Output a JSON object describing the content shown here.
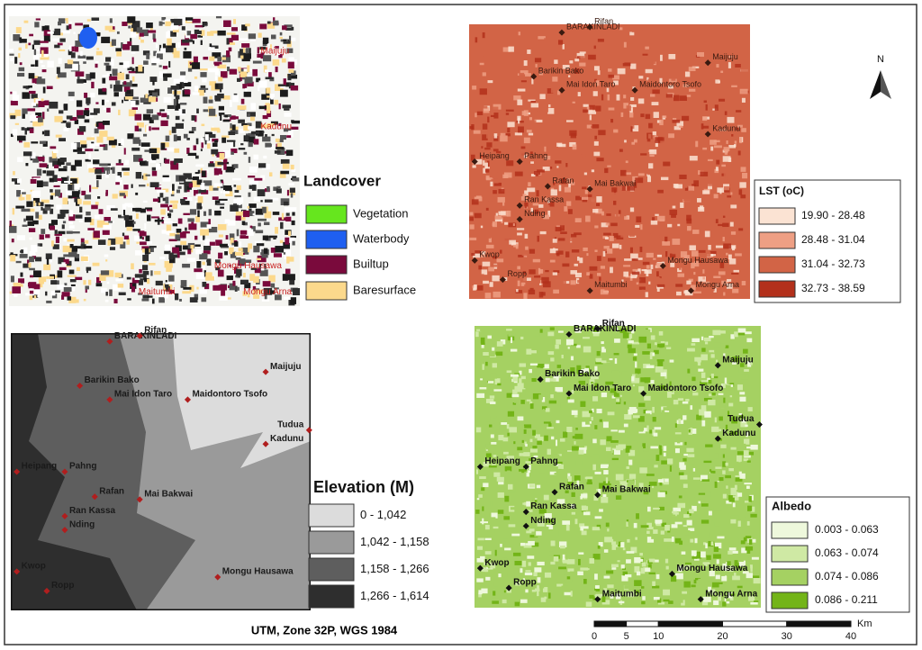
{
  "maps": [
    {
      "legend_title": "Landcover",
      "legend": [
        {
          "label": "Vegetation",
          "color": "#66e61e"
        },
        {
          "label": "Waterbody",
          "color": "#1f5ff0"
        },
        {
          "label": "Builtup",
          "color": "#7a0a3c"
        },
        {
          "label": "Baresurface",
          "color": "#fcd98c"
        }
      ],
      "places": [
        "Maijuju",
        "Kadunu",
        "Mongu Hausawa",
        "Maitumbi",
        "Mongu Arna"
      ]
    },
    {
      "legend_title": "LST (oC)",
      "legend": [
        {
          "label": "19.90 - 28.48",
          "color": "#fbe3d3"
        },
        {
          "label": "28.48 - 31.04",
          "color": "#ee9f84"
        },
        {
          "label": "31.04 - 32.73",
          "color": "#d26446"
        },
        {
          "label": "32.73 - 38.59",
          "color": "#b3301b"
        }
      ],
      "places": [
        "BARAKINLADI",
        "Rifan",
        "Maijuju",
        "Barikin Bako",
        "Mai Idon Taro",
        "Maidontoro Tsofo",
        "Kadunu",
        "Heipang",
        "Pahng",
        "Rafan",
        "Mai Bakwai",
        "Ran Kassa",
        "Nding",
        "Kwop",
        "Ropp",
        "Mongu Hausawa",
        "Maitumbi",
        "Mongu Arna"
      ]
    },
    {
      "legend_title": "Elevation (M)",
      "legend": [
        {
          "label": "0 - 1,042",
          "color": "#dcdcdc"
        },
        {
          "label": "1,042 - 1,158",
          "color": "#9a9a9a"
        },
        {
          "label": "1,158 - 1,266",
          "color": "#5e5e5e"
        },
        {
          "label": "1,266 - 1,614",
          "color": "#2e2e2e"
        }
      ],
      "places": [
        "BARAKINLADI",
        "Rifan",
        "Maijuju",
        "Barikin Bako",
        "Mai Idon Taro",
        "Maidontoro Tsofo",
        "Tudua",
        "Kadunu",
        "Heipang",
        "Pahng",
        "Rafan",
        "Mai Bakwai",
        "Ran Kassa",
        "Nding",
        "Kwop",
        "Ropp",
        "Mongu Hausawa"
      ]
    },
    {
      "legend_title": "Albedo",
      "legend": [
        {
          "label": "0.003 - 0.063",
          "color": "#eef8dc"
        },
        {
          "label": "0.063 - 0.074",
          "color": "#cfe9a4"
        },
        {
          "label": "0.074 - 0.086",
          "color": "#a5d162"
        },
        {
          "label": "0.086 - 0.211",
          "color": "#73b418"
        }
      ],
      "places": [
        "BARAKINLADI",
        "Rifan",
        "Maijuju",
        "Barikin Bako",
        "Mai Idon Taro",
        "Maidontoro Tsofo",
        "Tudua",
        "Kadunu",
        "Heipang",
        "Pahng",
        "Rafan",
        "Mai Bakwai",
        "Ran Kassa",
        "Nding",
        "Kwop",
        "Ropp",
        "Mongu Hausawa",
        "Maitumbi",
        "Mongu Arna"
      ]
    }
  ],
  "north": "N",
  "scale": {
    "ticks": [
      0,
      5,
      10,
      20,
      30,
      40
    ],
    "unit": "Km"
  },
  "projection": "UTM, Zone 32P, WGS 1984"
}
